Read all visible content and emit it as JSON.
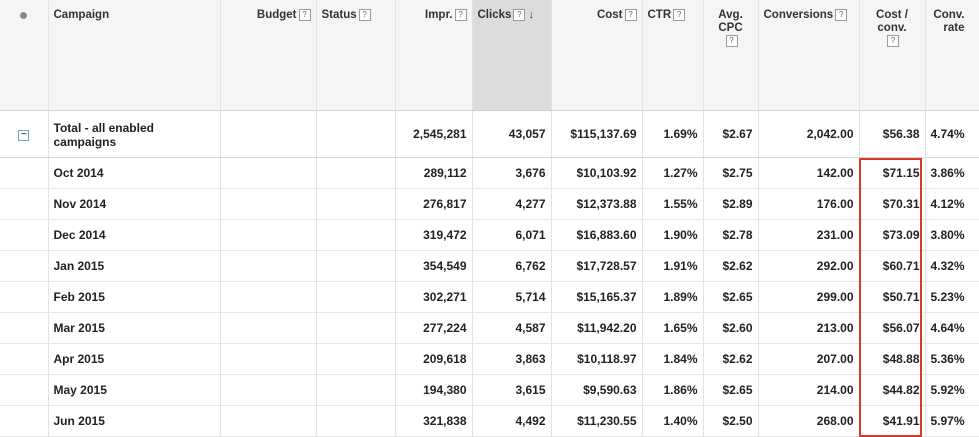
{
  "columns": {
    "campaign": "Campaign",
    "budget": "Budget",
    "status": "Status",
    "impr": "Impr.",
    "clicks": "Clicks",
    "cost": "Cost",
    "ctr": "CTR",
    "avg_cpc": "Avg. CPC",
    "conversions": "Conversions",
    "cost_conv": "Cost / conv.",
    "conv_rate": "Conv. rate",
    "help_glyph": "?",
    "sort_arrow": "↓"
  },
  "total": {
    "name": "Total - all enabled campaigns",
    "impr": "2,545,281",
    "clicks": "43,057",
    "cost": "$115,137.69",
    "ctr": "1.69%",
    "avg_cpc": "$2.67",
    "conversions": "2,042.00",
    "cost_conv": "$56.38",
    "conv_rate": "4.74%"
  },
  "rows": [
    {
      "name": "Oct 2014",
      "impr": "289,112",
      "clicks": "3,676",
      "cost": "$10,103.92",
      "ctr": "1.27%",
      "avg_cpc": "$2.75",
      "conversions": "142.00",
      "cost_conv": "$71.15",
      "conv_rate": "3.86%"
    },
    {
      "name": "Nov 2014",
      "impr": "276,817",
      "clicks": "4,277",
      "cost": "$12,373.88",
      "ctr": "1.55%",
      "avg_cpc": "$2.89",
      "conversions": "176.00",
      "cost_conv": "$70.31",
      "conv_rate": "4.12%"
    },
    {
      "name": "Dec 2014",
      "impr": "319,472",
      "clicks": "6,071",
      "cost": "$16,883.60",
      "ctr": "1.90%",
      "avg_cpc": "$2.78",
      "conversions": "231.00",
      "cost_conv": "$73.09",
      "conv_rate": "3.80%"
    },
    {
      "name": "Jan 2015",
      "impr": "354,549",
      "clicks": "6,762",
      "cost": "$17,728.57",
      "ctr": "1.91%",
      "avg_cpc": "$2.62",
      "conversions": "292.00",
      "cost_conv": "$60.71",
      "conv_rate": "4.32%"
    },
    {
      "name": "Feb 2015",
      "impr": "302,271",
      "clicks": "5,714",
      "cost": "$15,165.37",
      "ctr": "1.89%",
      "avg_cpc": "$2.65",
      "conversions": "299.00",
      "cost_conv": "$50.71",
      "conv_rate": "5.23%"
    },
    {
      "name": "Mar 2015",
      "impr": "277,224",
      "clicks": "4,587",
      "cost": "$11,942.20",
      "ctr": "1.65%",
      "avg_cpc": "$2.60",
      "conversions": "213.00",
      "cost_conv": "$56.07",
      "conv_rate": "4.64%"
    },
    {
      "name": "Apr 2015",
      "impr": "209,618",
      "clicks": "3,863",
      "cost": "$10,118.97",
      "ctr": "1.84%",
      "avg_cpc": "$2.62",
      "conversions": "207.00",
      "cost_conv": "$48.88",
      "conv_rate": "5.36%"
    },
    {
      "name": "May 2015",
      "impr": "194,380",
      "clicks": "3,615",
      "cost": "$9,590.63",
      "ctr": "1.86%",
      "avg_cpc": "$2.65",
      "conversions": "214.00",
      "cost_conv": "$44.82",
      "conv_rate": "5.92%"
    },
    {
      "name": "Jun 2015",
      "impr": "321,838",
      "clicks": "4,492",
      "cost": "$11,230.55",
      "ctr": "1.40%",
      "avg_cpc": "$2.50",
      "conversions": "268.00",
      "cost_conv": "$41.91",
      "conv_rate": "5.97%"
    }
  ],
  "highlight_color": "#d9392b",
  "sorted_column_bg": "#dcdcdc"
}
